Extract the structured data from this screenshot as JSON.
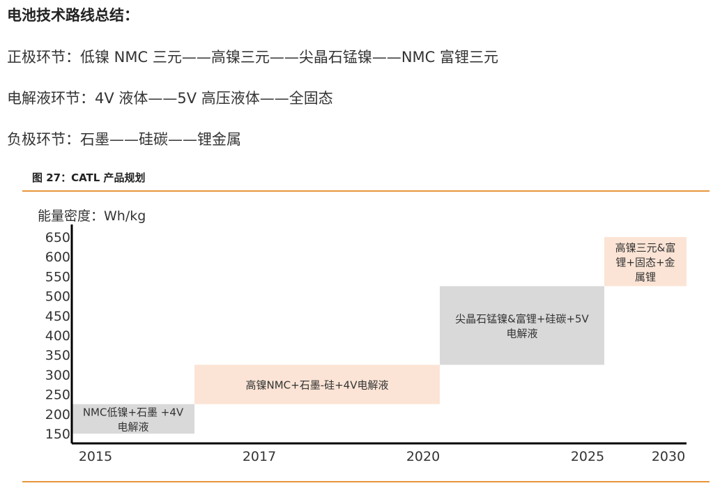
{
  "text": {
    "title": "电池技术路线总结：",
    "cathode": "正极环节：低镍 NMC 三元——高镍三元——尖晶石锰镍——NMC 富锂三元",
    "electrolyte": "电解液环节：4V 液体——5V 高压液体——全固态",
    "anode": "负极环节：石墨——硅碳——锂金属",
    "figure_caption": "图 27：CATL 产品规划"
  },
  "colors": {
    "accent_rule": "#e8943a",
    "gray_box": "#d9d9d9",
    "peach_box": "#fbe4d5",
    "axis": "#000000"
  },
  "chart_data": {
    "type": "roadmap",
    "ylabel": "能量密度：Wh/kg",
    "y_ticks": [
      150,
      200,
      250,
      300,
      350,
      400,
      450,
      500,
      550,
      600,
      650
    ],
    "ylim": [
      150,
      650
    ],
    "x_ticks": [
      "2015",
      "2017",
      "2020",
      "2025",
      "2030"
    ],
    "products": [
      {
        "label_lines": [
          "NMC低镍+石墨 +4V",
          "电解液"
        ],
        "x_start": "2015",
        "x_end": "2017",
        "y_low": 150,
        "y_high": 225,
        "color": "gray"
      },
      {
        "label_lines": [
          "高镍NMC+石墨-硅+4V电解液"
        ],
        "x_start": "2017",
        "x_end": "2020",
        "y_low": 225,
        "y_high": 325,
        "color": "peach"
      },
      {
        "label_lines": [
          "尖晶石锰镍&富锂+硅碳+5V",
          "电解液"
        ],
        "x_start": "2020",
        "x_end": "2025",
        "y_low": 325,
        "y_high": 525,
        "color": "gray"
      },
      {
        "label_lines": [
          "高镍三元&富",
          "锂+固态+金",
          "属锂"
        ],
        "x_start": "2025",
        "x_end": "2030",
        "y_low": 525,
        "y_high": 650,
        "color": "peach"
      }
    ]
  }
}
